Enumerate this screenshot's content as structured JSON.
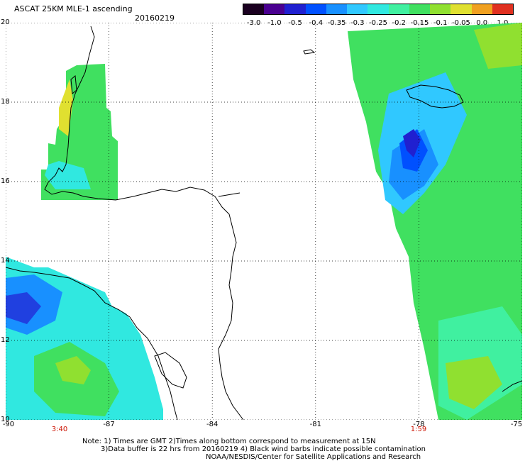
{
  "title": "ASCAT 25KM MLE-1 ascending",
  "date": "20160219",
  "colorbar": {
    "labels": [
      "-3.0",
      "-1.0",
      "-0.5",
      "-0.4",
      "-0.35",
      "-0.3",
      "-0.25",
      "-0.2",
      "-0.15",
      "-0.1",
      "-0.05",
      "0.0",
      "1.0"
    ],
    "colors": [
      "#1a0020",
      "#4a0090",
      "#2020d0",
      "#0050ff",
      "#1890ff",
      "#30c8ff",
      "#30e8e0",
      "#40f0a0",
      "#40e060",
      "#90e030",
      "#e0e030",
      "#f0a020",
      "#e03020"
    ]
  },
  "lat_labels": [
    "20",
    "18",
    "16",
    "14",
    "12",
    "10"
  ],
  "lon_labels": [
    "-90",
    "-87",
    "-84",
    "-81",
    "-78",
    "-75"
  ],
  "time_labels": [
    "3:40",
    "1:59"
  ],
  "notes": [
    "Note: 1) Times are GMT 2)Times along bottom correspond to measurement at 15N",
    "3)Data buffer is 22 hrs from 20160219 4) Black wind barbs indicate possible contamination",
    "NOAA/NESDIS/Center for Satellite Applications and Research"
  ]
}
